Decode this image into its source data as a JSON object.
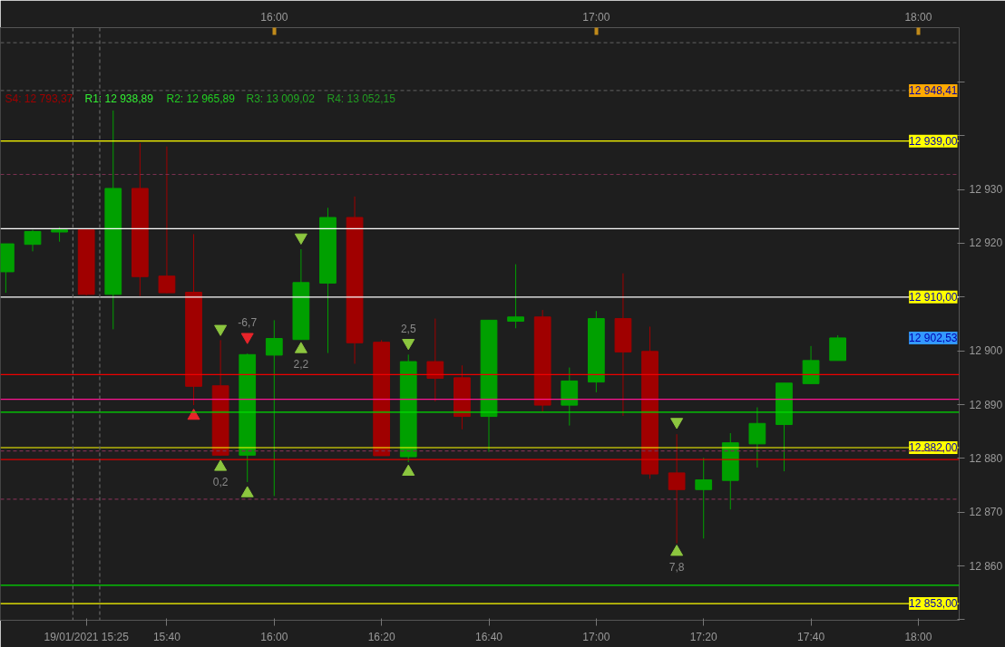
{
  "chart_data": {
    "type": "candlestick",
    "x": [
      15.16667,
      15.25,
      15.33333,
      15.41667,
      15.5,
      15.58333,
      15.66667,
      15.75,
      15.83333,
      15.91667,
      16,
      16.08333,
      16.16667,
      16.25,
      16.33333,
      16.41667,
      16.5,
      16.58333,
      16.66667,
      16.75,
      16.83333,
      16.91667,
      17,
      17.08333,
      17.16667,
      17.25,
      17.33333,
      17.41667,
      17.5,
      17.58333,
      17.66667,
      17.75
    ],
    "ohlc": [
      [
        12914.7,
        12919.9,
        12910.8,
        12919.9
      ],
      [
        12919.8,
        12922.5,
        12918.5,
        12922.2
      ],
      [
        12922.1,
        12923.0,
        12920.3,
        12922.5
      ],
      [
        12922.5,
        12922.5,
        12910.3,
        12910.5
      ],
      [
        12910.5,
        12944.7,
        12904.0,
        12930.2
      ],
      [
        12930.2,
        12938.6,
        12910.2,
        12913.8
      ],
      [
        12913.9,
        12938.0,
        12910.7,
        12910.8
      ],
      [
        12910.9,
        12921.7,
        12889.9,
        12893.4
      ],
      [
        12893.5,
        12902.0,
        12880.5,
        12880.6
      ],
      [
        12880.6,
        12899.5,
        12875.6,
        12899.3
      ],
      [
        12899.2,
        12905.7,
        12873.0,
        12902.3
      ],
      [
        12902.1,
        12918.9,
        12902.1,
        12912.7
      ],
      [
        12912.6,
        12926.6,
        12899.6,
        12924.8
      ],
      [
        12924.8,
        12928.7,
        12897.6,
        12901.5
      ],
      [
        12901.6,
        12902.0,
        12880.5,
        12880.5
      ],
      [
        12880.3,
        12899.3,
        12879.3,
        12898.0
      ],
      [
        12898.0,
        12906.0,
        12890.6,
        12894.9
      ],
      [
        12895.0,
        12897.3,
        12885.4,
        12887.8
      ],
      [
        12887.8,
        12905.7,
        12881.2,
        12905.7
      ],
      [
        12905.5,
        12916.1,
        12904.2,
        12906.3
      ],
      [
        12906.3,
        12907.6,
        12888.7,
        12889.9
      ],
      [
        12889.9,
        12896.9,
        12886.1,
        12894.4
      ],
      [
        12894.2,
        12907.4,
        12892.3,
        12906.0
      ],
      [
        12906.0,
        12914.4,
        12887.9,
        12899.8
      ],
      [
        12899.9,
        12904.5,
        12876.2,
        12877.1
      ],
      [
        12877.3,
        12884.5,
        12864.2,
        12874.2
      ],
      [
        12874.2,
        12880.1,
        12865.1,
        12876.0
      ],
      [
        12875.9,
        12884.7,
        12870.5,
        12882.9
      ],
      [
        12882.7,
        12889.5,
        12878.3,
        12886.5
      ],
      [
        12886.3,
        12894.0,
        12877.6,
        12894.0
      ],
      [
        12893.9,
        12900.9,
        12893.9,
        12898.2
      ],
      [
        12898.2,
        12902.9,
        12898.2,
        12902.4
      ]
    ],
    "colors": [
      "#00a000",
      "#00a000",
      "#00a000",
      "#a00000",
      "#00a000",
      "#a00000",
      "#a00000",
      "#a00000",
      "#a00000",
      "#00a000",
      "#00a000",
      "#00a000",
      "#00a000",
      "#a00000",
      "#a00000",
      "#00a000",
      "#a00000",
      "#a00000",
      "#00a000",
      "#00a000",
      "#a00000",
      "#00a000",
      "#00a000",
      "#a00000",
      "#a00000",
      "#a00000",
      "#00a000",
      "#00a000",
      "#00a000",
      "#00a000",
      "#00a000",
      "#00a000"
    ],
    "series": [
      {
        "type": "scatter",
        "marker": "triangle",
        "color": "#8cc63f",
        "x": [
          15.83333,
          15.91667,
          16.08333,
          16.41667,
          17.25
        ],
        "values": [
          12878.4,
          12873.5,
          12900.3,
          12877.5,
          12862.6
        ]
      },
      {
        "type": "scatter",
        "marker": "triangle",
        "color": "#e8242a",
        "x": [
          15.75
        ],
        "values": [
          12887.9
        ]
      },
      {
        "type": "scatter",
        "marker": "triangle",
        "color": "#8cc63f",
        "x": [
          15.83333,
          16.08333,
          16.41667,
          17.25
        ],
        "values": [
          12904.1,
          12921.1,
          12901.5,
          12886.8
        ]
      },
      {
        "type": "scatter",
        "marker": "triangle",
        "color": "#e8242a",
        "x": [
          15.91667
        ],
        "values": [
          12902.6
        ]
      }
    ],
    "xlim": [
      15.15,
      18.127
    ],
    "ylim": [
      12849.9,
      12960.1
    ],
    "xticks": [
      {
        "value": 15.41667,
        "label": "19/01/2021 15:25"
      },
      {
        "value": 15.66667,
        "label": "15:40"
      },
      {
        "value": 16,
        "label": "16:00"
      },
      {
        "value": 16.33333,
        "label": "16:20"
      },
      {
        "value": 16.66667,
        "label": "16:40"
      },
      {
        "value": 17,
        "label": "17:00"
      },
      {
        "value": 17.33333,
        "label": "17:20"
      },
      {
        "value": 17.66667,
        "label": "17:40"
      },
      {
        "value": 18,
        "label": "18:00"
      }
    ],
    "x2lim": [
      15.15,
      18.127
    ],
    "x2ticks": [
      {
        "value": 16,
        "label": "16:00"
      },
      {
        "value": 17,
        "label": "17:00"
      },
      {
        "value": 18,
        "label": "18:00"
      }
    ],
    "yticks": [
      {
        "value": 12850,
        "label": null
      },
      {
        "value": 12860,
        "label": "12 860"
      },
      {
        "value": 12870,
        "label": "12 870"
      },
      {
        "value": 12880,
        "label": "12 880"
      },
      {
        "value": 12890,
        "label": "12 890"
      },
      {
        "value": 12900,
        "label": "12 900"
      },
      {
        "value": 12910,
        "label": null
      },
      {
        "value": 12920,
        "label": "12 920"
      },
      {
        "value": 12930,
        "label": "12 930"
      },
      {
        "value": 12940,
        "label": null
      },
      {
        "value": 12950,
        "label": null
      }
    ],
    "ref_lines": [
      {
        "axis": "y",
        "value": 12939,
        "label": "12 939,00",
        "color": "#ffff00",
        "line_style": "solid"
      },
      {
        "axis": "y",
        "value": 12910,
        "label": "12 910,00",
        "color": "#ffffff",
        "line_style": "solid"
      },
      {
        "axis": "y",
        "value": 12882,
        "label": "12 882,00",
        "color": "#ffff00",
        "line_style": "solid"
      },
      {
        "axis": "y",
        "value": 12853,
        "label": "12 853,00",
        "color": "#ffff00",
        "line_style": "solid"
      },
      {
        "axis": "y",
        "value": 12948.41,
        "label": "12 948,41",
        "color": "#555555",
        "line_style": "dashed"
      },
      {
        "axis": "y",
        "value": 12922.7,
        "color": "#ffffff",
        "line_style": "solid"
      },
      {
        "axis": "y",
        "value": 12895.6,
        "color": "#ee0000",
        "line_style": "solid"
      },
      {
        "axis": "y",
        "value": 12891.0,
        "color": "#ff1493",
        "line_style": "solid"
      },
      {
        "axis": "y",
        "value": 12888.6,
        "color": "#00dd00",
        "line_style": "solid"
      },
      {
        "axis": "y",
        "value": 12879.8,
        "color": "#dd0000",
        "line_style": "solid"
      },
      {
        "axis": "y",
        "value": 12856.4,
        "color": "#00dd00",
        "line_style": "solid"
      },
      {
        "axis": "y",
        "value": 12957.3,
        "color": "#555555",
        "line_style": "dashed"
      },
      {
        "axis": "y",
        "value": 12932.8,
        "color": "#7a3050",
        "line_style": "dashed"
      },
      {
        "axis": "y",
        "value": 12881.4,
        "color": "#7a3050",
        "line_style": "dashed"
      },
      {
        "axis": "y",
        "value": 12872.4,
        "color": "#7a3050",
        "line_style": "dashed"
      },
      {
        "axis": "x",
        "value": 15.375,
        "color": "#666666",
        "line_style": "dashed"
      },
      {
        "axis": "x",
        "value": 15.45833,
        "color": "#666666",
        "line_style": "dashed"
      }
    ],
    "annotations": [
      "S4: 12 793,37",
      "R1: 12 938,89",
      "R2: 12 965,89",
      "R3: 13 009,02",
      "R4: 13 052,15",
      "-6,7",
      "0,2",
      "2,2",
      "2,5",
      "7,8",
      "12 902,53"
    ]
  }
}
